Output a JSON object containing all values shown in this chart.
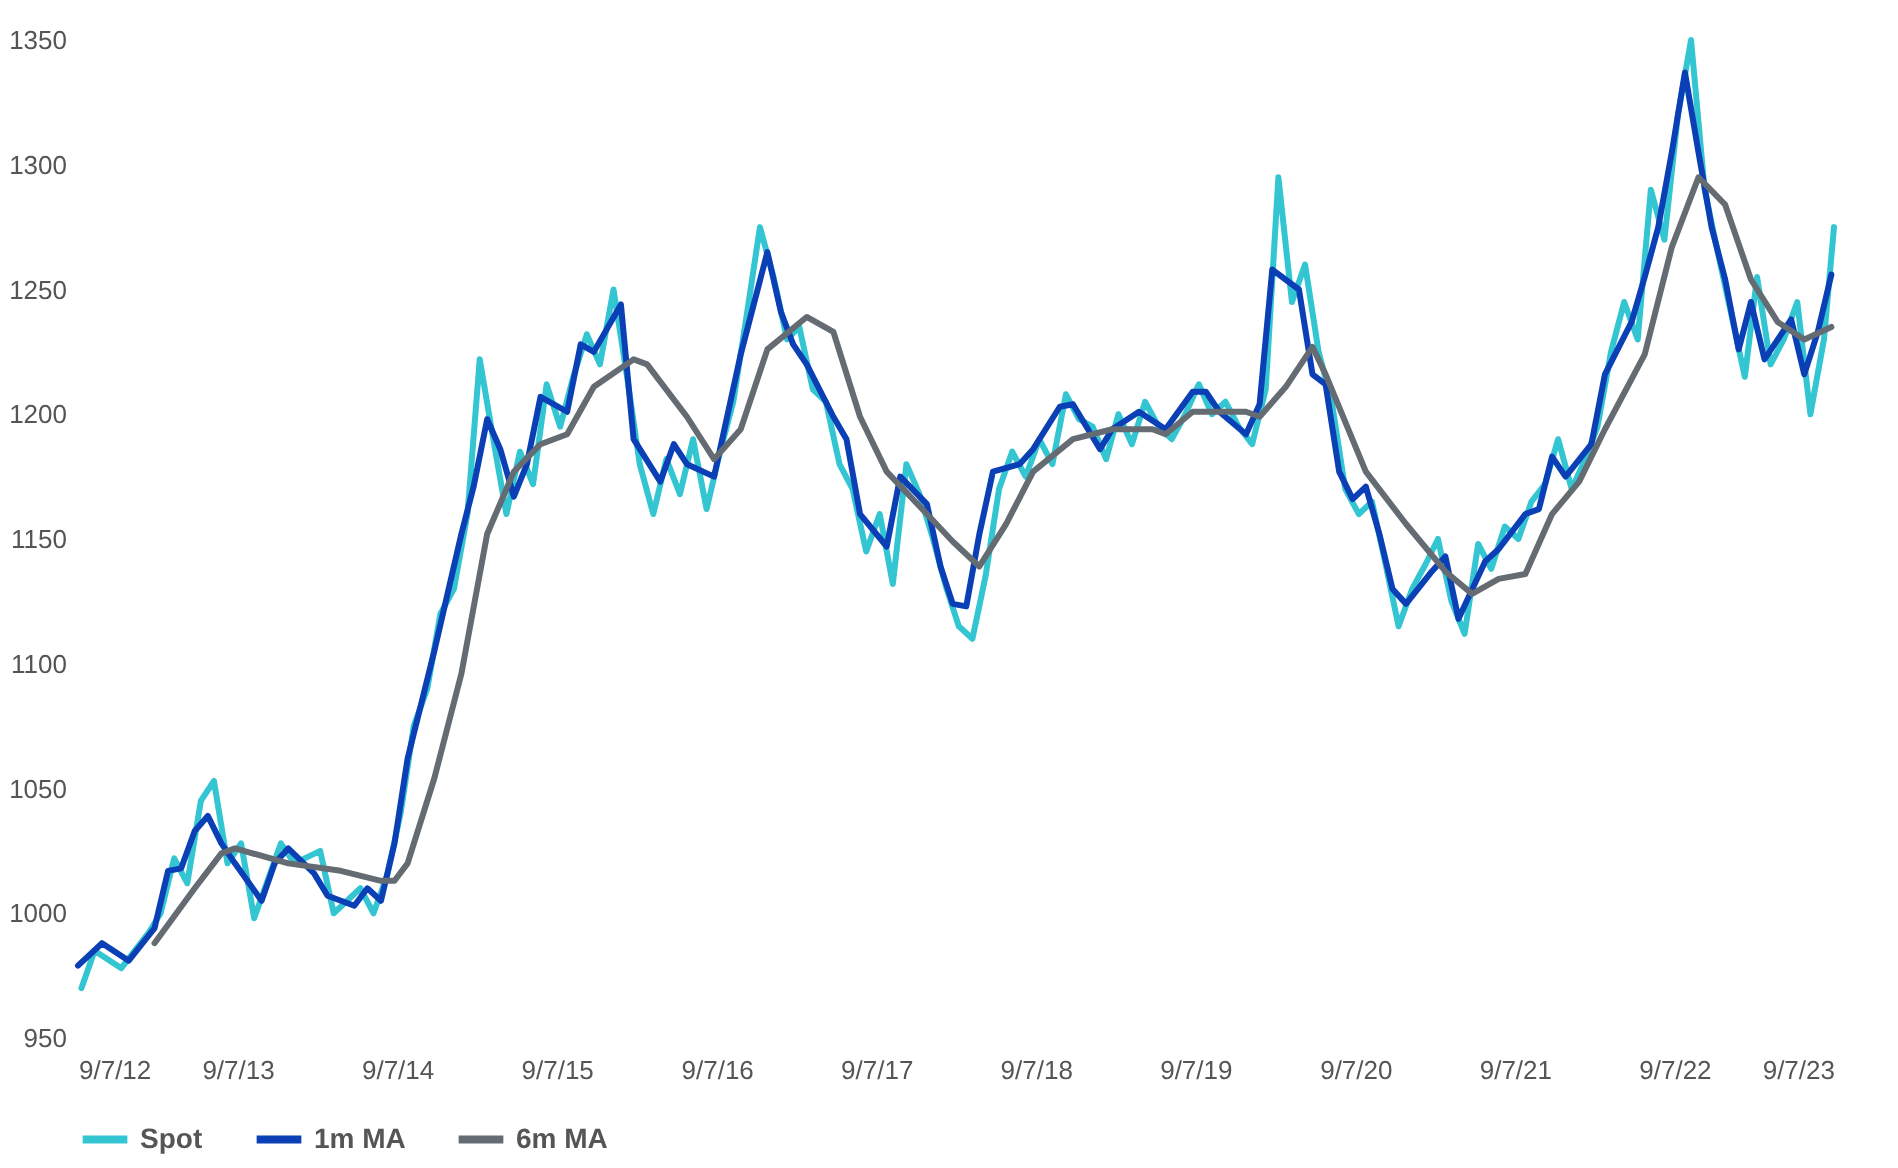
{
  "chart_data": {
    "type": "line",
    "xlim": [
      "2012-09-07",
      "2023-09-07"
    ],
    "xticks": [
      {
        "value": "2012-09-07",
        "label": "9/7/12"
      },
      {
        "value": "2013-09-07",
        "label": "9/7/13"
      },
      {
        "value": "2014-09-07",
        "label": "9/7/14"
      },
      {
        "value": "2015-09-07",
        "label": "9/7/15"
      },
      {
        "value": "2016-09-07",
        "label": "9/7/16"
      },
      {
        "value": "2017-09-07",
        "label": "9/7/17"
      },
      {
        "value": "2018-09-07",
        "label": "9/7/18"
      },
      {
        "value": "2019-09-07",
        "label": "9/7/19"
      },
      {
        "value": "2020-09-07",
        "label": "9/7/20"
      },
      {
        "value": "2021-09-07",
        "label": "9/7/21"
      },
      {
        "value": "2022-09-07",
        "label": "9/7/22"
      },
      {
        "value": "2023-09-07",
        "label": "9/7/23"
      }
    ],
    "ylim": [
      950,
      1350
    ],
    "yticks": [
      950,
      1000,
      1050,
      1100,
      1150,
      1200,
      1250,
      1300,
      1350
    ],
    "grid": false,
    "legend": "bottom",
    "series": [
      {
        "name": "Spot",
        "color": "#33c6d2",
        "x": [
          "2012-09-15",
          "2012-10-15",
          "2012-12-15",
          "2013-02-15",
          "2013-03-15",
          "2013-04-15",
          "2013-05-15",
          "2013-06-15",
          "2013-07-15",
          "2013-08-15",
          "2013-09-15",
          "2013-10-15",
          "2013-12-15",
          "2014-01-15",
          "2014-03-15",
          "2014-04-15",
          "2014-06-15",
          "2014-07-15",
          "2014-08-15",
          "2014-09-15",
          "2014-10-15",
          "2014-11-15",
          "2014-12-15",
          "2015-01-15",
          "2015-02-15",
          "2015-03-15",
          "2015-04-15",
          "2015-05-15",
          "2015-06-15",
          "2015-07-15",
          "2015-08-15",
          "2015-09-15",
          "2015-10-15",
          "2015-11-15",
          "2015-12-15",
          "2016-01-15",
          "2016-02-15",
          "2016-03-15",
          "2016-04-15",
          "2016-05-15",
          "2016-06-15",
          "2016-07-15",
          "2016-08-15",
          "2016-09-15",
          "2016-10-15",
          "2016-11-15",
          "2016-12-15",
          "2017-01-15",
          "2017-02-15",
          "2017-03-15",
          "2017-04-15",
          "2017-05-15",
          "2017-06-15",
          "2017-07-15",
          "2017-08-15",
          "2017-09-15",
          "2017-10-15",
          "2017-11-15",
          "2017-12-15",
          "2018-01-15",
          "2018-02-15",
          "2018-03-15",
          "2018-04-15",
          "2018-05-15",
          "2018-06-15",
          "2018-07-15",
          "2018-08-15",
          "2018-09-15",
          "2018-10-15",
          "2018-11-15",
          "2018-12-15",
          "2019-01-15",
          "2019-02-15",
          "2019-03-15",
          "2019-04-15",
          "2019-05-15",
          "2019-06-15",
          "2019-07-15",
          "2019-08-15",
          "2019-09-15",
          "2019-10-15",
          "2019-11-15",
          "2019-12-15",
          "2020-01-15",
          "2020-02-15",
          "2020-03-15",
          "2020-04-15",
          "2020-05-15",
          "2020-06-15",
          "2020-07-15",
          "2020-08-15",
          "2020-09-15",
          "2020-10-15",
          "2020-11-15",
          "2020-12-15",
          "2021-01-15",
          "2021-02-15",
          "2021-03-15",
          "2021-04-15",
          "2021-05-15",
          "2021-06-15",
          "2021-07-15",
          "2021-08-15",
          "2021-09-15",
          "2021-10-15",
          "2021-11-15",
          "2021-12-15",
          "2022-01-15",
          "2022-02-15",
          "2022-03-15",
          "2022-04-15",
          "2022-05-15",
          "2022-06-15",
          "2022-07-15",
          "2022-08-15",
          "2022-09-15",
          "2022-10-15",
          "2022-11-15",
          "2022-12-15",
          "2023-01-15",
          "2023-02-15",
          "2023-03-15",
          "2023-04-15",
          "2023-05-15",
          "2023-06-15",
          "2023-07-15",
          "2023-08-15",
          "2023-09-07"
        ],
        "values": [
          970,
          985,
          978,
          992,
          1000,
          1022,
          1012,
          1045,
          1053,
          1020,
          1028,
          998,
          1028,
          1020,
          1025,
          1000,
          1010,
          1000,
          1015,
          1040,
          1075,
          1090,
          1120,
          1130,
          1160,
          1222,
          1190,
          1160,
          1185,
          1172,
          1212,
          1195,
          1215,
          1232,
          1220,
          1250,
          1215,
          1180,
          1160,
          1182,
          1168,
          1190,
          1162,
          1185,
          1205,
          1240,
          1275,
          1255,
          1230,
          1235,
          1210,
          1205,
          1180,
          1170,
          1145,
          1160,
          1132,
          1180,
          1168,
          1150,
          1130,
          1115,
          1110,
          1135,
          1170,
          1185,
          1175,
          1190,
          1180,
          1208,
          1198,
          1195,
          1182,
          1200,
          1188,
          1205,
          1195,
          1190,
          1200,
          1212,
          1200,
          1205,
          1195,
          1188,
          1210,
          1295,
          1245,
          1260,
          1225,
          1205,
          1170,
          1160,
          1165,
          1140,
          1115,
          1130,
          1140,
          1150,
          1125,
          1112,
          1148,
          1138,
          1155,
          1150,
          1165,
          1172,
          1190,
          1170,
          1182,
          1195,
          1225,
          1245,
          1230,
          1290,
          1270,
          1320,
          1350,
          1290,
          1265,
          1240,
          1215,
          1255,
          1220,
          1230,
          1245,
          1200,
          1230,
          1275
        ]
      },
      {
        "name": "1m MA",
        "color": "#0a3fb5",
        "x": [
          "2012-09-07",
          "2012-11",
          "2013-01",
          "2013-03",
          "2013-04",
          "2013-05",
          "2013-06",
          "2013-07",
          "2013-08",
          "2013-09",
          "2013-11",
          "2013-12",
          "2014-01",
          "2014-03",
          "2014-04",
          "2014-06",
          "2014-07",
          "2014-08",
          "2014-09",
          "2014-10",
          "2014-12",
          "2015-02",
          "2015-03",
          "2015-04",
          "2015-05",
          "2015-06",
          "2015-07",
          "2015-08",
          "2015-10",
          "2015-11",
          "2015-12",
          "2016-02",
          "2016-03",
          "2016-05",
          "2016-06",
          "2016-07",
          "2016-09",
          "2016-10",
          "2016-11",
          "2017-01",
          "2017-02",
          "2017-03",
          "2017-04",
          "2017-06",
          "2017-07",
          "2017-08",
          "2017-10",
          "2017-11",
          "2018-01",
          "2018-02",
          "2018-03",
          "2018-04",
          "2018-05",
          "2018-06",
          "2018-08",
          "2018-09",
          "2018-11",
          "2018-12",
          "2019-02",
          "2019-03",
          "2019-05",
          "2019-07",
          "2019-09",
          "2019-10",
          "2019-11",
          "2020-01",
          "2020-02",
          "2020-03",
          "2020-05",
          "2020-06",
          "2020-07",
          "2020-08",
          "2020-09",
          "2020-10",
          "2020-11",
          "2020-12",
          "2021-01",
          "2021-03",
          "2021-04",
          "2021-05",
          "2021-07",
          "2021-08",
          "2021-10",
          "2021-11",
          "2021-12",
          "2022-01",
          "2022-03",
          "2022-04",
          "2022-06",
          "2022-07",
          "2022-08",
          "2022-09",
          "2022-10",
          "2022-11",
          "2022-12",
          "2023-01",
          "2023-02",
          "2023-03",
          "2023-04",
          "2023-06",
          "2023-07",
          "2023-08",
          "2023-09"
        ],
        "values": [
          979,
          988,
          981,
          994,
          1017,
          1018,
          1033,
          1039,
          1028,
          1020,
          1005,
          1020,
          1026,
          1016,
          1007,
          1003,
          1010,
          1005,
          1028,
          1062,
          1105,
          1152,
          1171,
          1198,
          1186,
          1167,
          1180,
          1207,
          1201,
          1228,
          1225,
          1244,
          1190,
          1173,
          1188,
          1180,
          1175,
          1199,
          1224,
          1265,
          1241,
          1228,
          1220,
          1199,
          1190,
          1160,
          1147,
          1175,
          1164,
          1139,
          1124,
          1123,
          1152,
          1177,
          1180,
          1186,
          1203,
          1204,
          1186,
          1194,
          1201,
          1194,
          1209,
          1209,
          1201,
          1192,
          1204,
          1258,
          1250,
          1216,
          1212,
          1177,
          1166,
          1171,
          1152,
          1130,
          1124,
          1137,
          1143,
          1118,
          1141,
          1146,
          1160,
          1162,
          1183,
          1175,
          1188,
          1216,
          1237,
          1255,
          1275,
          1305,
          1337,
          1305,
          1275,
          1254,
          1226,
          1245,
          1222,
          1238,
          1216,
          1233,
          1256
        ]
      },
      {
        "name": "6m MA",
        "color": "#646b72",
        "x": [
          "2013-03",
          "2013-06",
          "2013-08",
          "2013-09",
          "2014-01",
          "2014-05",
          "2014-08",
          "2014-09",
          "2014-10",
          "2014-12",
          "2015-02",
          "2015-04",
          "2015-06",
          "2015-08",
          "2015-10",
          "2015-12",
          "2016-03",
          "2016-04",
          "2016-07",
          "2016-09",
          "2016-11",
          "2017-01",
          "2017-04",
          "2017-06",
          "2017-08",
          "2017-10",
          "2018-01",
          "2018-03",
          "2018-05",
          "2018-07",
          "2018-09",
          "2018-12",
          "2019-03",
          "2019-06",
          "2019-07",
          "2019-09",
          "2019-11",
          "2020-01",
          "2020-02",
          "2020-04",
          "2020-06",
          "2020-07",
          "2020-10",
          "2021-01",
          "2021-04",
          "2021-06",
          "2021-08",
          "2021-10",
          "2021-12",
          "2022-02",
          "2022-04",
          "2022-07",
          "2022-09",
          "2022-11",
          "2023-01",
          "2023-03",
          "2023-05",
          "2023-07",
          "2023-09"
        ],
        "values": [
          988,
          1010,
          1024,
          1026,
          1020,
          1017,
          1013,
          1013,
          1020,
          1054,
          1096,
          1152,
          1177,
          1188,
          1192,
          1211,
          1222,
          1220,
          1199,
          1182,
          1194,
          1226,
          1239,
          1233,
          1199,
          1177,
          1160,
          1149,
          1139,
          1156,
          1177,
          1190,
          1194,
          1194,
          1192,
          1201,
          1201,
          1201,
          1199,
          1211,
          1227,
          1216,
          1177,
          1156,
          1137,
          1128,
          1134,
          1136,
          1160,
          1173,
          1194,
          1224,
          1267,
          1295,
          1284,
          1254,
          1237,
          1230,
          1235
        ]
      }
    ]
  }
}
